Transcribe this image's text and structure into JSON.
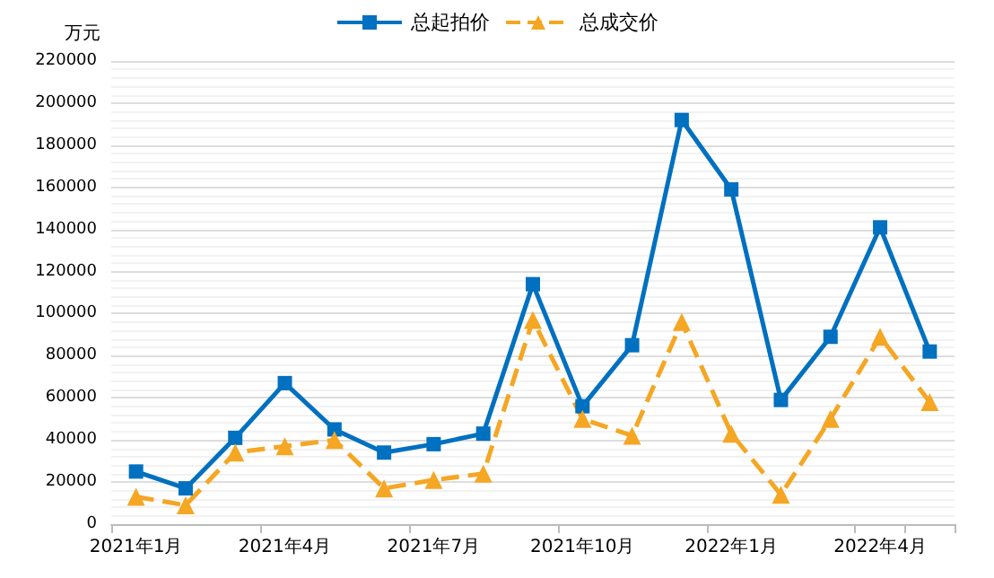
{
  "chart_data": {
    "type": "line",
    "ylabel": "万元",
    "categories": [
      "2021年1月",
      null,
      null,
      "2021年4月",
      null,
      null,
      "2021年7月",
      null,
      null,
      "2021年10月",
      null,
      null,
      "2022年1月",
      null,
      null,
      "2022年4月",
      null
    ],
    "series": [
      {
        "name": "总起拍价",
        "color": "#0070c0",
        "marker": "square",
        "line_style": "solid",
        "values": [
          25000,
          17000,
          41000,
          67000,
          45000,
          34000,
          38000,
          43000,
          114000,
          56000,
          85000,
          192000,
          159000,
          59000,
          89000,
          141000,
          82000
        ]
      },
      {
        "name": "总成交价",
        "color": "#f5a623",
        "marker": "triangle",
        "line_style": "dashed",
        "values": [
          13000,
          9000,
          34000,
          37000,
          40000,
          17000,
          21000,
          24000,
          97000,
          50000,
          42000,
          96000,
          43000,
          14000,
          50000,
          89000,
          58000
        ]
      }
    ],
    "ylim": [
      0,
      220000
    ],
    "yticks": [
      0,
      20000,
      40000,
      60000,
      80000,
      100000,
      120000,
      140000,
      160000,
      180000,
      200000,
      220000
    ],
    "grid": "y",
    "legend": "top"
  }
}
